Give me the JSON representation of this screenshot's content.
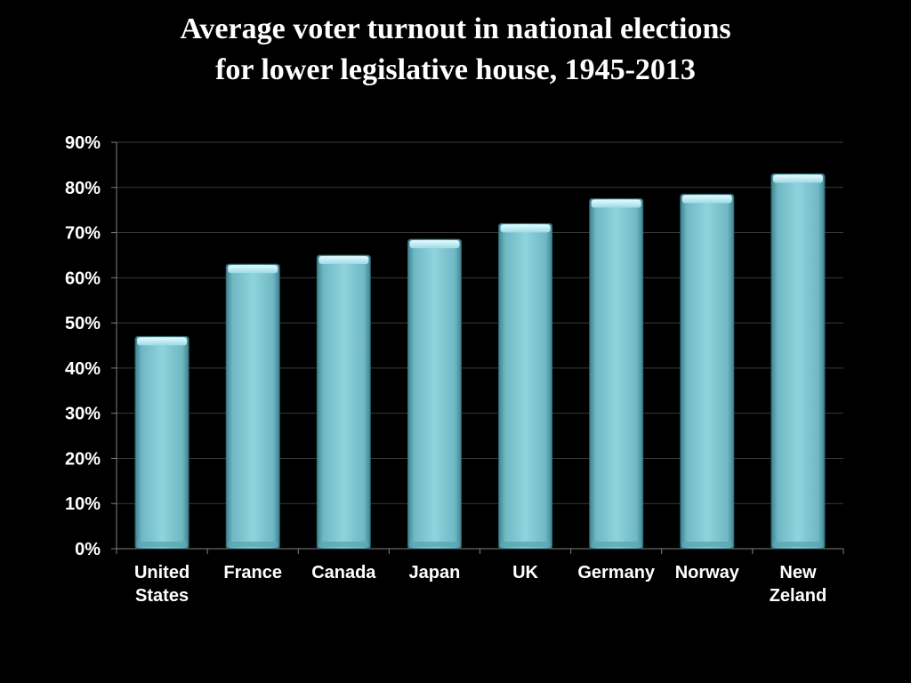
{
  "chart_data": {
    "type": "bar",
    "title": "Average voter turnout in national elections for lower legislative house, 1945-2013",
    "title_lines": [
      "Average voter turnout in national elections",
      "for lower legislative house, 1945-2013"
    ],
    "xlabel": "",
    "ylabel": "",
    "categories": [
      "United States",
      "France",
      "Canada",
      "Japan",
      "UK",
      "Germany",
      "Norway",
      "New Zeland"
    ],
    "category_lines": [
      [
        "United",
        "States"
      ],
      [
        "France"
      ],
      [
        "Canada"
      ],
      [
        "Japan"
      ],
      [
        "UK"
      ],
      [
        "Germany"
      ],
      [
        "Norway"
      ],
      [
        "New",
        "Zeland"
      ]
    ],
    "values": [
      47,
      63,
      65,
      68.5,
      72,
      77.5,
      78.5,
      83
    ],
    "ylim": [
      0,
      90
    ],
    "yticks": [
      0,
      10,
      20,
      30,
      40,
      50,
      60,
      70,
      80,
      90
    ],
    "ytick_labels": [
      "0%",
      "10%",
      "20%",
      "30%",
      "40%",
      "50%",
      "60%",
      "70%",
      "80%",
      "90%"
    ],
    "grid": true,
    "legend": false,
    "colors": {
      "background": "#000000",
      "bar": "#7fc4cf",
      "bar_dark": "#4f9aa6",
      "bar_light": "#c8eef4",
      "gridline": "#3a3a3a",
      "axis": "#808080",
      "text": "#ffffff"
    }
  }
}
